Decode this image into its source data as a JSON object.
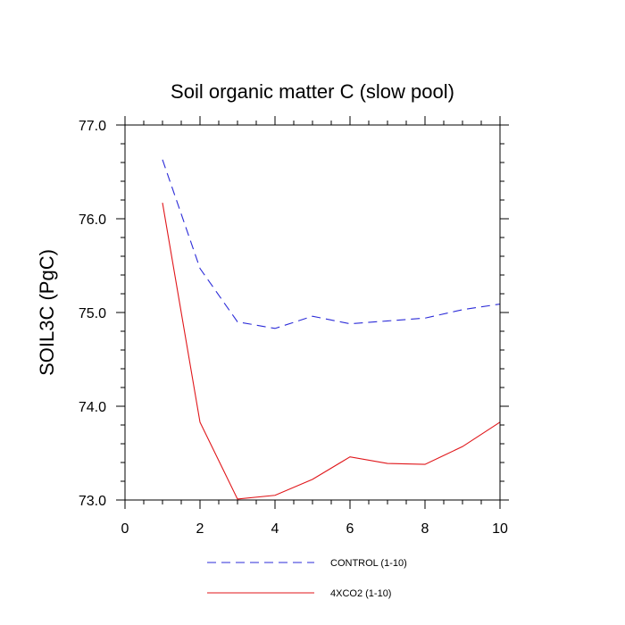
{
  "chart_data": {
    "type": "line",
    "title": "Soil organic matter C (slow pool)",
    "xlabel": "",
    "ylabel": "SOIL3C  (PgC)",
    "xlim": [
      0,
      10
    ],
    "ylim": [
      73.0,
      77.0
    ],
    "x_ticks": [
      0,
      2,
      4,
      6,
      8,
      10
    ],
    "x_tick_labels": [
      "0",
      "2",
      "4",
      "6",
      "8",
      "10"
    ],
    "y_ticks": [
      73.0,
      74.0,
      75.0,
      76.0,
      77.0
    ],
    "y_tick_labels": [
      "73.0",
      "74.0",
      "75.0",
      "76.0",
      "77.0"
    ],
    "x": [
      1,
      2,
      3,
      4,
      5,
      6,
      7,
      8,
      9,
      10
    ],
    "series": [
      {
        "name": "CONTROL (1-10)",
        "color": "#2b2bd8",
        "dash": "dashed",
        "values": [
          76.63,
          75.47,
          74.9,
          74.83,
          74.96,
          74.88,
          74.91,
          74.94,
          75.03,
          75.09
        ]
      },
      {
        "name": "4XCO2 (1-10)",
        "color": "#e0161a",
        "dash": "solid",
        "values": [
          76.17,
          73.83,
          73.01,
          73.05,
          73.22,
          73.46,
          73.39,
          73.38,
          73.57,
          73.83
        ]
      }
    ],
    "legend": "bottom",
    "grid": false
  }
}
